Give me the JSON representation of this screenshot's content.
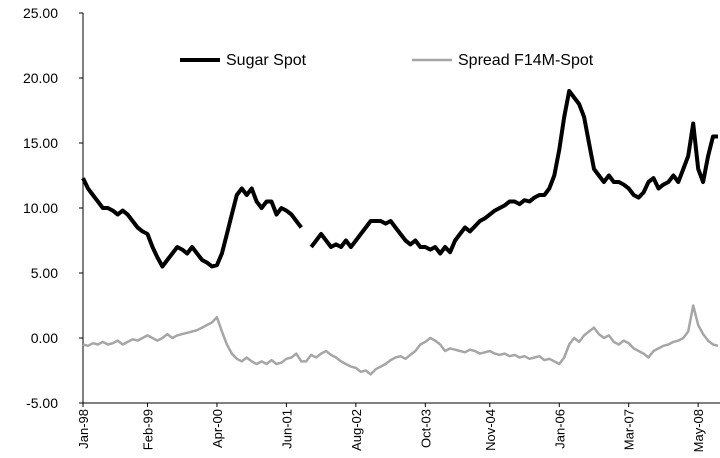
{
  "chart_data": {
    "type": "line",
    "categories": [
      "Jan-98",
      null,
      null,
      null,
      null,
      null,
      null,
      null,
      null,
      null,
      null,
      null,
      null,
      "Feb-99",
      null,
      null,
      null,
      null,
      null,
      null,
      null,
      null,
      null,
      null,
      null,
      null,
      null,
      "Apr-00",
      null,
      null,
      null,
      null,
      null,
      null,
      null,
      null,
      null,
      null,
      null,
      null,
      null,
      "Jun-01",
      null,
      null,
      null,
      null,
      null,
      null,
      null,
      null,
      null,
      null,
      null,
      null,
      null,
      "Aug-02",
      null,
      null,
      null,
      null,
      null,
      null,
      null,
      null,
      null,
      null,
      null,
      null,
      null,
      "Oct-03",
      null,
      null,
      null,
      null,
      null,
      null,
      null,
      null,
      null,
      null,
      null,
      null,
      "Nov-04",
      null,
      null,
      null,
      null,
      null,
      null,
      null,
      null,
      null,
      null,
      null,
      null,
      null,
      "Jan-06",
      null,
      null,
      null,
      null,
      null,
      null,
      null,
      null,
      null,
      null,
      null,
      null,
      null,
      "Mar-07",
      null,
      null,
      null,
      null,
      null,
      null,
      null,
      null,
      null,
      null,
      null,
      null,
      null,
      "May-08",
      null,
      null,
      null,
      null
    ],
    "series": [
      {
        "name": "Sugar Spot",
        "color": "#000000",
        "width": 4,
        "values": [
          12.3,
          11.5,
          11,
          10.5,
          10,
          10,
          9.8,
          9.5,
          9.8,
          9.5,
          9,
          8.5,
          8.2,
          8,
          7,
          6.2,
          5.5,
          6,
          6.5,
          7,
          6.8,
          6.5,
          7,
          6.5,
          6,
          5.8,
          5.5,
          5.6,
          6.5,
          8,
          9.5,
          11,
          11.5,
          11,
          11.5,
          10.5,
          10,
          10.5,
          10.5,
          9.5,
          10,
          9.8,
          9.5,
          9,
          8.5,
          null,
          7,
          7.5,
          8,
          7.5,
          7,
          7.2,
          7,
          7.5,
          7,
          7.5,
          8,
          8.5,
          9,
          9,
          9,
          8.8,
          9,
          8.5,
          8,
          7.5,
          7.2,
          7.5,
          7,
          7,
          6.8,
          7,
          6.5,
          7,
          6.6,
          7.5,
          8,
          8.5,
          8.2,
          8.6,
          9,
          9.2,
          9.5,
          9.8,
          10,
          10.2,
          10.5,
          10.5,
          10.3,
          10.6,
          10.5,
          10.8,
          11,
          11,
          11.5,
          12.5,
          14.5,
          17,
          19,
          18.5,
          18,
          17,
          15,
          13,
          12.5,
          12,
          12.5,
          12,
          12,
          11.8,
          11.5,
          11,
          10.8,
          11.2,
          12,
          12.3,
          11.5,
          11.8,
          12,
          12.5,
          12,
          13,
          14,
          16.5,
          13,
          12,
          14,
          15.5,
          15.5
        ]
      },
      {
        "name": "Spread F14M-Spot",
        "color": "#a6a6a6",
        "width": 2.5,
        "values": [
          -0.5,
          -0.6,
          -0.4,
          -0.5,
          -0.3,
          -0.5,
          -0.4,
          -0.2,
          -0.5,
          -0.3,
          -0.1,
          -0.2,
          0,
          0.2,
          0,
          -0.2,
          0,
          0.3,
          0,
          0.2,
          0.3,
          0.4,
          0.5,
          0.6,
          0.8,
          1,
          1.2,
          1.6,
          0.5,
          -0.5,
          -1.2,
          -1.6,
          -1.8,
          -1.5,
          -1.8,
          -2,
          -1.8,
          -2,
          -1.7,
          -2,
          -1.9,
          -1.6,
          -1.5,
          -1.2,
          -1.8,
          -1.8,
          -1.3,
          -1.5,
          -1.2,
          -1,
          -1.3,
          -1.5,
          -1.8,
          -2,
          -2.2,
          -2.3,
          -2.6,
          -2.5,
          -2.8,
          -2.4,
          -2.2,
          -2,
          -1.7,
          -1.5,
          -1.4,
          -1.6,
          -1.3,
          -1,
          -0.5,
          -0.3,
          0,
          -0.2,
          -0.5,
          -1,
          -0.8,
          -0.9,
          -1,
          -1.1,
          -0.9,
          -1,
          -1.2,
          -1.1,
          -1,
          -1.2,
          -1.3,
          -1.2,
          -1.4,
          -1.3,
          -1.5,
          -1.4,
          -1.6,
          -1.5,
          -1.4,
          -1.7,
          -1.6,
          -1.8,
          -2,
          -1.5,
          -0.5,
          0,
          -0.3,
          0.2,
          0.5,
          0.8,
          0.3,
          0,
          0.2,
          -0.3,
          -0.5,
          -0.2,
          -0.4,
          -0.8,
          -1,
          -1.2,
          -1.5,
          -1,
          -0.8,
          -0.6,
          -0.5,
          -0.3,
          -0.2,
          0,
          0.5,
          2.5,
          1,
          0.3,
          -0.2,
          -0.5,
          -0.6
        ]
      }
    ],
    "ylim": [
      -5,
      25
    ],
    "yticks": [
      {
        "value": -5,
        "label": "-5.00"
      },
      {
        "value": 0,
        "label": "0.00"
      },
      {
        "value": 5,
        "label": "5.00"
      },
      {
        "value": 10,
        "label": "10.00"
      },
      {
        "value": 15,
        "label": "15.00"
      },
      {
        "value": 20,
        "label": "20.00"
      },
      {
        "value": 25,
        "label": "25.00"
      }
    ],
    "legend": "top"
  }
}
